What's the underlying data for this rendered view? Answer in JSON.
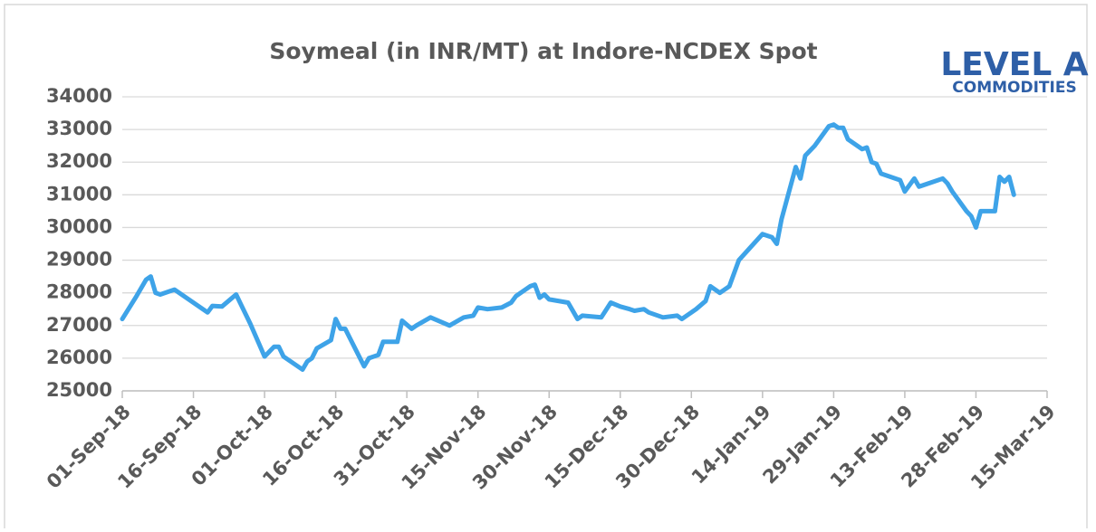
{
  "chart_data": {
    "type": "line",
    "title": "Soymeal (in INR/MT) at Indore-NCDEX Spot",
    "logo": {
      "brand": "LEVEL A",
      "tagline": "COMMODITIES"
    },
    "series": [
      {
        "name": "Soymeal",
        "color": "#3ea3e8",
        "x": [
          "01-Sep-18",
          "04-Sep-18",
          "06-Sep-18",
          "07-Sep-18",
          "08-Sep-18",
          "09-Sep-18",
          "11-Sep-18",
          "12-Sep-18",
          "14-Sep-18",
          "19-Sep-18",
          "20-Sep-18",
          "22-Sep-18",
          "25-Sep-18",
          "26-Sep-18",
          "28-Sep-18",
          "01-Oct-18",
          "03-Oct-18",
          "04-Oct-18",
          "05-Oct-18",
          "09-Oct-18",
          "10-Oct-18",
          "11-Oct-18",
          "12-Oct-18",
          "15-Oct-18",
          "16-Oct-18",
          "17-Oct-18",
          "18-Oct-18",
          "22-Oct-18",
          "23-Oct-18",
          "25-Oct-18",
          "26-Oct-18",
          "29-Oct-18",
          "30-Oct-18",
          "01-Nov-18",
          "02-Nov-18",
          "05-Nov-18",
          "09-Nov-18",
          "12-Nov-18",
          "14-Nov-18",
          "15-Nov-18",
          "17-Nov-18",
          "20-Nov-18",
          "22-Nov-18",
          "23-Nov-18",
          "26-Nov-18",
          "27-Nov-18",
          "28-Nov-18",
          "29-Nov-18",
          "30-Nov-18",
          "04-Dec-18",
          "06-Dec-18",
          "07-Dec-18",
          "11-Dec-18",
          "13-Dec-18",
          "15-Dec-18",
          "17-Dec-18",
          "18-Dec-18",
          "20-Dec-18",
          "21-Dec-18",
          "24-Dec-18",
          "27-Dec-18",
          "28-Dec-18",
          "31-Dec-18",
          "02-Jan-19",
          "03-Jan-19",
          "05-Jan-19",
          "07-Jan-19",
          "09-Jan-19",
          "14-Jan-19",
          "16-Jan-19",
          "17-Jan-19",
          "18-Jan-19",
          "21-Jan-19",
          "22-Jan-19",
          "23-Jan-19",
          "25-Jan-19",
          "28-Jan-19",
          "29-Jan-19",
          "30-Jan-19",
          "31-Jan-19",
          "01-Feb-19",
          "04-Feb-19",
          "05-Feb-19",
          "06-Feb-19",
          "07-Feb-19",
          "08-Feb-19",
          "12-Feb-19",
          "13-Feb-19",
          "15-Feb-19",
          "16-Feb-19",
          "20-Feb-19",
          "21-Feb-19",
          "22-Feb-19",
          "23-Feb-19",
          "26-Feb-19",
          "27-Feb-19",
          "28-Feb-19",
          "01-Mar-19",
          "04-Mar-19",
          "05-Mar-19",
          "06-Mar-19",
          "07-Mar-19",
          "08-Mar-19"
        ],
        "values": [
          27200,
          27900,
          28400,
          28500,
          28000,
          27950,
          28050,
          28100,
          27900,
          27400,
          27600,
          27580,
          27950,
          27650,
          27050,
          26050,
          26350,
          26350,
          26050,
          25650,
          25900,
          26000,
          26300,
          26550,
          27200,
          26900,
          26900,
          25750,
          26000,
          26100,
          26500,
          26500,
          27150,
          26900,
          27000,
          27250,
          27000,
          27250,
          27300,
          27550,
          27500,
          27550,
          27700,
          27900,
          28200,
          28250,
          27850,
          27950,
          27800,
          27700,
          27200,
          27300,
          27250,
          27700,
          27580,
          27500,
          27450,
          27500,
          27400,
          27250,
          27300,
          27200,
          27500,
          27750,
          28200,
          28000,
          28200,
          29000,
          29800,
          29700,
          29500,
          30250,
          31850,
          31500,
          32200,
          32500,
          33100,
          33150,
          33050,
          33050,
          32700,
          32400,
          32450,
          32000,
          31950,
          31650,
          31450,
          31100,
          31500,
          31250,
          31450,
          31500,
          31350,
          31100,
          30500,
          30350,
          30000,
          30500,
          30500,
          31550,
          31400,
          31550,
          31000
        ]
      }
    ],
    "xlim": [
      "01-Sep-18",
      "15-Mar-19"
    ],
    "xticks": [
      "01-Sep-18",
      "16-Sep-18",
      "01-Oct-18",
      "16-Oct-18",
      "31-Oct-18",
      "15-Nov-18",
      "30-Nov-18",
      "15-Dec-18",
      "30-Dec-18",
      "14-Jan-19",
      "29-Jan-19",
      "13-Feb-19",
      "28-Feb-19",
      "15-Mar-19"
    ],
    "ylim": [
      25000,
      34000
    ],
    "yticks": [
      25000,
      26000,
      27000,
      28000,
      29000,
      30000,
      31000,
      32000,
      33000,
      34000
    ],
    "grid": true
  }
}
